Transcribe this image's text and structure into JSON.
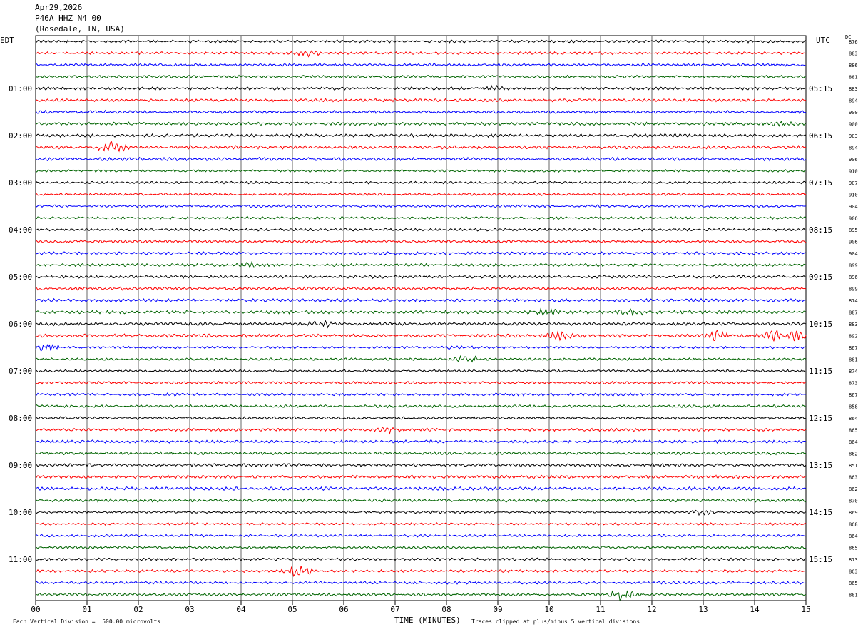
{
  "header": {
    "date": "Apr29,2026",
    "station": "P46A HHZ N4 00",
    "location": "(Rosedale, IN, USA)"
  },
  "labels": {
    "left_zone": "EDT",
    "right_zone": "UTC",
    "dc_header": "DC",
    "x_axis_title": "TIME (MINUTES)",
    "scale_note": "Each Vertical Division =  500.00 microvolts",
    "clip_note": "Traces clipped at plus/minus 5 vertical divisions"
  },
  "chart_data": {
    "type": "line",
    "title": "Apr29,2026 P46A HHZ N4 00 (Rosedale, IN, USA)",
    "xlabel": "TIME (MINUTES)",
    "xlim": [
      0,
      15
    ],
    "x_ticks": [
      "00",
      "01",
      "02",
      "03",
      "04",
      "05",
      "06",
      "07",
      "08",
      "09",
      "10",
      "11",
      "12",
      "13",
      "14",
      "15"
    ],
    "trace_colors": [
      "#000000",
      "#ff0000",
      "#0000ff",
      "#006400"
    ],
    "left_time_labels": [
      "01:00",
      "02:00",
      "03:00",
      "04:00",
      "05:00",
      "06:00",
      "07:00",
      "08:00",
      "09:00",
      "10:00",
      "11:00"
    ],
    "right_time_labels": [
      "05:15",
      "06:15",
      "07:15",
      "08:15",
      "09:15",
      "10:15",
      "11:15",
      "12:15",
      "13:15",
      "14:15",
      "15:15"
    ],
    "dc_offsets": [
      "876",
      "883",
      "886",
      "881",
      "883",
      "894",
      "900",
      "900",
      "903",
      "894",
      "906",
      "910",
      "907",
      "910",
      "904",
      "906",
      "895",
      "906",
      "904",
      "899",
      "896",
      "899",
      "874",
      "887",
      "883",
      "892",
      "867",
      "881",
      "874",
      "873",
      "867",
      "858",
      "864",
      "865",
      "864",
      "862",
      "851",
      "863",
      "862",
      "870",
      "869",
      "868",
      "864",
      "865",
      "873",
      "863",
      "865",
      "881"
    ],
    "events": [
      {
        "trace": 1,
        "minute": 5.3,
        "amplitude": 1.2
      },
      {
        "trace": 4,
        "minute": 8.9,
        "amplitude": 1.0
      },
      {
        "trace": 7,
        "minute": 14.5,
        "amplitude": 1.3
      },
      {
        "trace": 9,
        "minute": 1.5,
        "amplitude": 2.5
      },
      {
        "trace": 19,
        "minute": 4.2,
        "amplitude": 1.0
      },
      {
        "trace": 23,
        "minute": 9.9,
        "amplitude": 2.0
      },
      {
        "trace": 23,
        "minute": 11.6,
        "amplitude": 1.5
      },
      {
        "trace": 24,
        "minute": 5.6,
        "amplitude": 1.5
      },
      {
        "trace": 25,
        "minute": 10.2,
        "amplitude": 1.5
      },
      {
        "trace": 25,
        "minute": 13.3,
        "amplitude": 2.5
      },
      {
        "trace": 25,
        "minute": 14.4,
        "amplitude": 2.5
      },
      {
        "trace": 25,
        "minute": 14.9,
        "amplitude": 3.0
      },
      {
        "trace": 26,
        "minute": 0.2,
        "amplitude": 2.0
      },
      {
        "trace": 26,
        "minute": 8.2,
        "amplitude": 1.2
      },
      {
        "trace": 27,
        "minute": 8.4,
        "amplitude": 1.5
      },
      {
        "trace": 33,
        "minute": 6.9,
        "amplitude": 1.2
      },
      {
        "trace": 40,
        "minute": 13.0,
        "amplitude": 1.2
      },
      {
        "trace": 45,
        "minute": 5.1,
        "amplitude": 3.0
      },
      {
        "trace": 47,
        "minute": 11.4,
        "amplitude": 2.5
      }
    ]
  }
}
